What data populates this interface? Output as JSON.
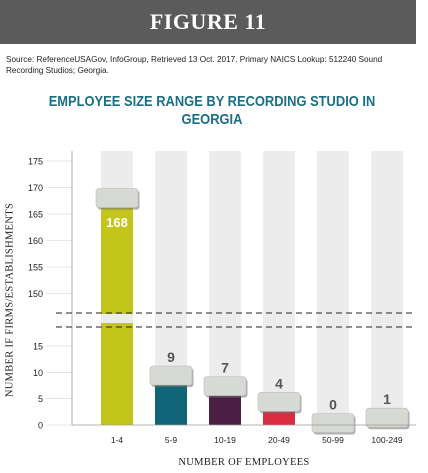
{
  "figure_label": "FIGURE 11",
  "source_note": "Source: ReferenceUSAGov, InfoGroup, Retrieved 13 Oct. 2017. Primary NAICS Lookup: 512240 Sound Recording Studios; Georgia.",
  "chart_data": {
    "type": "bar",
    "title": "EMPLOYEE SIZE RANGE BY RECORDING STUDIO IN GEORGIA",
    "xlabel": "NUMBER OF EMPLOYEES",
    "ylabel": "NUMBER IF FIRMS/ESTABLISHMENTS",
    "categories": [
      "1-4",
      "5-9",
      "10-19",
      "20-49",
      "50-99",
      "100-249"
    ],
    "values": [
      168,
      9,
      7,
      4,
      0,
      1
    ],
    "value_labels": [
      "168",
      "9",
      "7",
      "4",
      "0",
      "1"
    ],
    "bar_colors": [
      "#c3c51b",
      "#0f6477",
      "#4b1e45",
      "#d92d3f",
      "#9e9e9e",
      "#3d3d3d"
    ],
    "axis": "broken",
    "lower_segment": {
      "ylim": [
        0,
        18
      ],
      "ticks": [
        "0",
        "5",
        "10",
        "15"
      ]
    },
    "upper_segment": {
      "ylim": [
        146,
        176
      ],
      "ticks": [
        "150",
        "155",
        "160",
        "165",
        "170",
        "175"
      ]
    },
    "grid": false,
    "legend": "none"
  }
}
